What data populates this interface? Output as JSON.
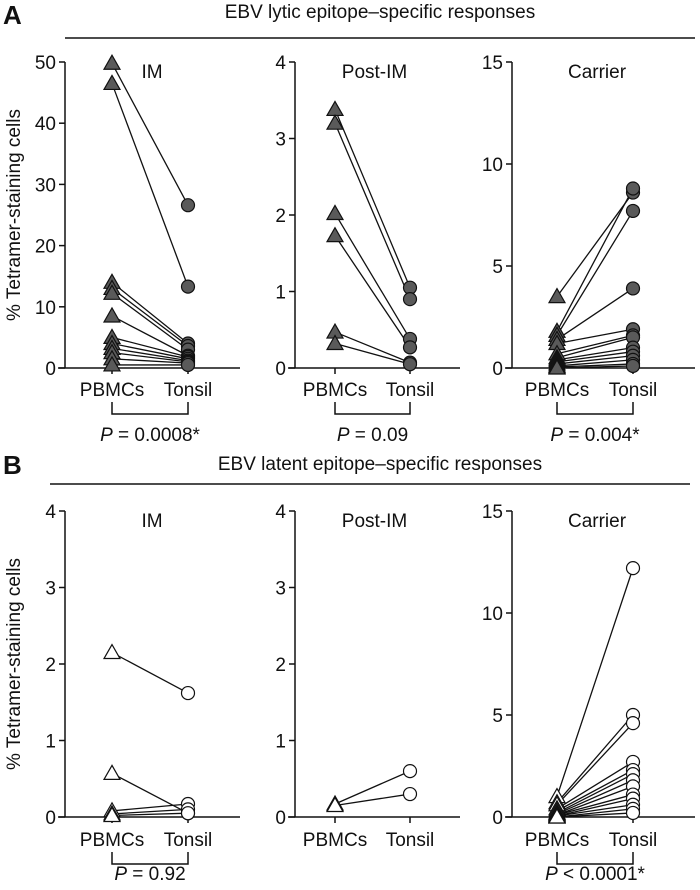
{
  "y_axis_label": "% Tetramer-staining cells",
  "colors": {
    "lytic_fill": "#5a5a5a",
    "latent_fill": "#ffffff",
    "stroke": "#111111"
  },
  "chart_data": [
    {
      "type": "line",
      "panel": "A",
      "section_title": "EBV lytic epitope–specific responses",
      "title": "IM",
      "categories": [
        "PBMCs",
        "Tonsil"
      ],
      "ylim": [
        0,
        50
      ],
      "yticks": [
        0,
        10,
        20,
        30,
        40,
        50
      ],
      "marker_fill": "filled",
      "p_value": "P = 0.0008*",
      "pairs": [
        [
          49.8,
          26.6
        ],
        [
          46.5,
          13.3
        ],
        [
          14,
          4
        ],
        [
          13,
          3.6
        ],
        [
          12.2,
          3
        ],
        [
          8.5,
          2
        ],
        [
          5,
          1.8
        ],
        [
          4,
          1.5
        ],
        [
          3.2,
          1.2
        ],
        [
          2.5,
          1
        ],
        [
          1.5,
          0.8
        ],
        [
          0.5,
          0.5
        ]
      ]
    },
    {
      "type": "line",
      "panel": "A",
      "title": "Post-IM",
      "categories": [
        "PBMCs",
        "Tonsil"
      ],
      "ylim": [
        0,
        4
      ],
      "yticks": [
        0,
        1,
        2,
        3,
        4
      ],
      "marker_fill": "filled",
      "p_value": "P = 0.09",
      "pairs": [
        [
          3.38,
          1.05
        ],
        [
          3.2,
          0.9
        ],
        [
          2.02,
          0.38
        ],
        [
          1.73,
          0.27
        ],
        [
          0.47,
          0.07
        ],
        [
          0.32,
          0.05
        ]
      ]
    },
    {
      "type": "line",
      "panel": "A",
      "title": "Carrier",
      "categories": [
        "PBMCs",
        "Tonsil"
      ],
      "ylim": [
        0,
        15
      ],
      "yticks": [
        0,
        5,
        10,
        15
      ],
      "marker_fill": "filled",
      "p_value": "P = 0.004*",
      "pairs": [
        [
          3.5,
          8.6
        ],
        [
          1.8,
          8.8
        ],
        [
          1.6,
          7.7
        ],
        [
          1.4,
          3.9
        ],
        [
          1.2,
          1.9
        ],
        [
          0.7,
          1.6
        ],
        [
          0.5,
          1.5
        ],
        [
          0.4,
          1.0
        ],
        [
          0.3,
          0.8
        ],
        [
          0.2,
          0.6
        ],
        [
          0.1,
          0.4
        ],
        [
          0.05,
          0.2
        ],
        [
          0,
          0.1
        ]
      ]
    },
    {
      "type": "line",
      "panel": "B",
      "section_title": "EBV latent epitope–specific responses",
      "title": "IM",
      "categories": [
        "PBMCs",
        "Tonsil"
      ],
      "ylim": [
        0,
        4
      ],
      "yticks": [
        0,
        1,
        2,
        3,
        4
      ],
      "marker_fill": "open",
      "p_value": "P = 0.92",
      "pairs": [
        [
          2.15,
          1.62
        ],
        [
          0.57,
          0.05
        ],
        [
          0.08,
          0.17
        ],
        [
          0.04,
          0.1
        ],
        [
          0.02,
          0.05
        ]
      ]
    },
    {
      "type": "line",
      "panel": "B",
      "title": "Post-IM",
      "categories": [
        "PBMCs",
        "Tonsil"
      ],
      "ylim": [
        0,
        4
      ],
      "yticks": [
        0,
        1,
        2,
        3,
        4
      ],
      "marker_fill": "open",
      "p_value": "",
      "pairs": [
        [
          0.17,
          0.6
        ],
        [
          0.15,
          0.3
        ]
      ]
    },
    {
      "type": "line",
      "panel": "B",
      "title": "Carrier",
      "categories": [
        "PBMCs",
        "Tonsil"
      ],
      "ylim": [
        0,
        15
      ],
      "yticks": [
        0,
        5,
        10,
        15
      ],
      "marker_fill": "open",
      "p_value": "P < 0.0001*",
      "pairs": [
        [
          1.0,
          12.2
        ],
        [
          0.7,
          5.0
        ],
        [
          0.6,
          4.6
        ],
        [
          0.4,
          2.7
        ],
        [
          0.3,
          2.3
        ],
        [
          0.2,
          2.1
        ],
        [
          0.15,
          1.8
        ],
        [
          0.1,
          1.5
        ],
        [
          0.1,
          1.1
        ],
        [
          0.05,
          0.9
        ],
        [
          0.05,
          0.6
        ],
        [
          0,
          0.4
        ],
        [
          0,
          0.2
        ]
      ]
    }
  ]
}
